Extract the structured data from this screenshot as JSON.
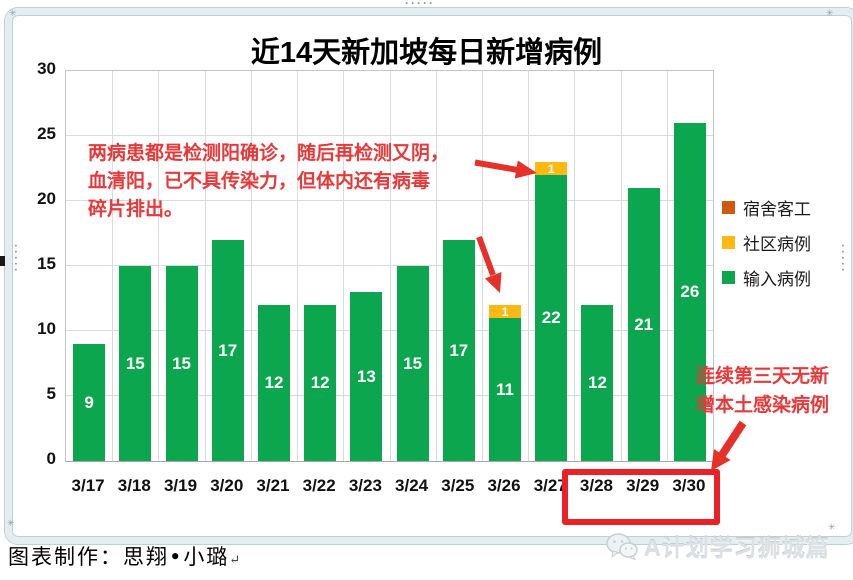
{
  "title": "近14天新加坡每日新增病例",
  "annotations": {
    "top_note": "两病患都是检测阳确诊，随后再检测又阴，\n血清阳，已不具传染力，但体内还有病毒\n碎片排出。",
    "bottom_right_note": "连续第三天无新\n增本土感染病例"
  },
  "legend": {
    "items": [
      {
        "label": "宿舍客工",
        "color": "#CE5A12"
      },
      {
        "label": "社区病例",
        "color": "#FDB913"
      },
      {
        "label": "输入病例",
        "color": "#0CA64F"
      }
    ]
  },
  "footer": {
    "credit": "图表制作：思翔•小璐",
    "paragraph_mark": "↵"
  },
  "watermark": {
    "text": "A计划学习狮城篇"
  },
  "icons": {
    "drag_dots": "·····",
    "corner_mark": "✳"
  },
  "colors": {
    "imported_green": "#0CA64F",
    "community_yellow": "#FDB913",
    "dorm_orange": "#CE5A12",
    "annotation_red": "#E8393A",
    "highlight_box_red": "#EA2127",
    "gridline": "#DADADA"
  },
  "chart_data": {
    "type": "bar",
    "stacked": true,
    "title": "近14天新加坡每日新增病例",
    "categories": [
      "3/17",
      "3/18",
      "3/19",
      "3/20",
      "3/21",
      "3/22",
      "3/23",
      "3/24",
      "3/25",
      "3/26",
      "3/27",
      "3/28",
      "3/29",
      "3/30"
    ],
    "series": [
      {
        "name": "输入病例",
        "color": "#0CA64F",
        "values": [
          9,
          15,
          15,
          17,
          12,
          12,
          13,
          15,
          17,
          11,
          22,
          12,
          21,
          26
        ]
      },
      {
        "name": "社区病例",
        "color": "#FDB913",
        "values": [
          0,
          0,
          0,
          0,
          0,
          0,
          0,
          0,
          0,
          1,
          1,
          0,
          0,
          0
        ]
      },
      {
        "name": "宿舍客工",
        "color": "#CE5A12",
        "values": [
          0,
          0,
          0,
          0,
          0,
          0,
          0,
          0,
          0,
          0,
          0,
          0,
          0,
          0
        ]
      }
    ],
    "ylim": [
      0,
      30
    ],
    "yticks": [
      0,
      5,
      10,
      15,
      20,
      25,
      30
    ],
    "ytick_interval": 5,
    "grid": true,
    "legend_position": "right",
    "highlighted_categories": [
      "3/28",
      "3/29",
      "3/30"
    ]
  }
}
